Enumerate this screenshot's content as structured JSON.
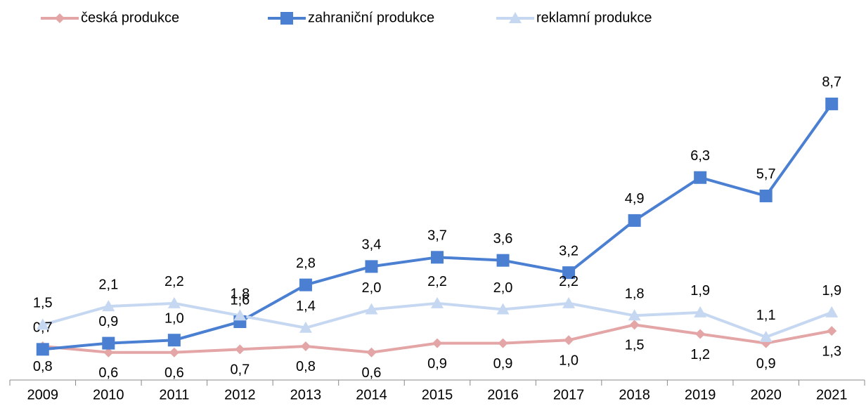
{
  "chart_data": {
    "type": "line",
    "categories": [
      "2009",
      "2010",
      "2011",
      "2012",
      "2013",
      "2014",
      "2015",
      "2016",
      "2017",
      "2018",
      "2019",
      "2020",
      "2021"
    ],
    "series": [
      {
        "name": "česká produkce",
        "color": "#e3a5a5",
        "marker": "diamond",
        "label_position": "below",
        "values": [
          0.8,
          0.6,
          0.6,
          0.7,
          0.8,
          0.6,
          0.9,
          0.9,
          1.0,
          1.5,
          1.2,
          0.9,
          1.3
        ],
        "value_labels": [
          "0,8",
          "0,6",
          "0,6",
          "0,7",
          "0,8",
          "0,6",
          "0,9",
          "0,9",
          "1,0",
          "1,5",
          "1,2",
          "0,9",
          "1,3"
        ]
      },
      {
        "name": "zahraniční produkce",
        "color": "#4a7fd2",
        "marker": "square",
        "label_position": "above",
        "values": [
          0.7,
          0.9,
          1.0,
          1.6,
          2.8,
          3.4,
          3.7,
          3.6,
          3.2,
          4.9,
          6.3,
          5.7,
          8.7
        ],
        "value_labels": [
          "0,7",
          "0,9",
          "1,0",
          "1,6",
          "2,8",
          "3,4",
          "3,7",
          "3,6",
          "3,2",
          "4,9",
          "6,3",
          "5,7",
          "8,7"
        ]
      },
      {
        "name": "reklamní produkce",
        "color": "#c6d8f1",
        "marker": "triangle",
        "label_position": "above",
        "values": [
          1.5,
          2.1,
          2.2,
          1.8,
          1.4,
          2.0,
          2.2,
          2.0,
          2.2,
          1.8,
          1.9,
          1.1,
          1.9
        ],
        "value_labels": [
          "1,5",
          "2,1",
          "2,2",
          "1,8",
          "1,4",
          "2,0",
          "2,2",
          "2,0",
          "2,2",
          "1,8",
          "1,9",
          "1,1",
          "1,9"
        ]
      }
    ],
    "ylim": [
      -0.3,
      9.5
    ],
    "legend": "top"
  }
}
